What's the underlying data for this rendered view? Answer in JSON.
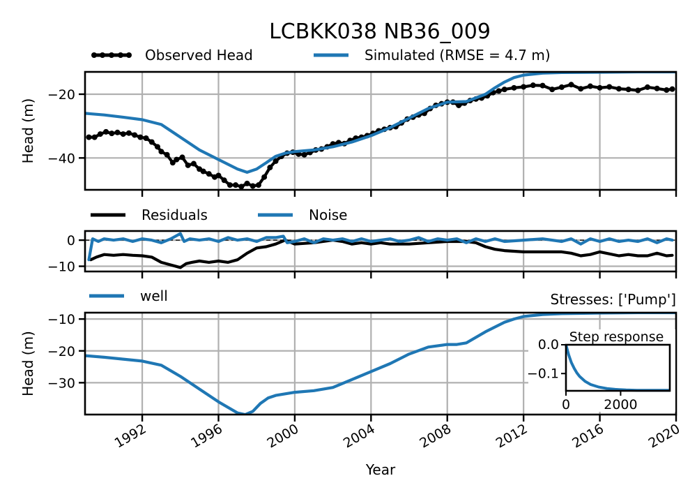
{
  "title": "LCBKK038 NB36_009",
  "colors": {
    "observed": "#000000",
    "simulated": "#1f77b4",
    "residuals": "#000000",
    "noise": "#1f77b4",
    "well": "#1f77b4",
    "grid": "#b0b0b0"
  },
  "chart_data": [
    {
      "type": "line",
      "panel": "head",
      "ylabel": "Head (m)",
      "xlim": [
        1989.0,
        2020.0
      ],
      "ylim": [
        -50.0,
        -13.0
      ],
      "yticks": [
        -20,
        -40
      ],
      "ytick_labels": [
        "−20",
        "−40"
      ],
      "grid": true,
      "legend": "above",
      "series": [
        {
          "name": "Observed Head",
          "style": "line-with-dots",
          "x": [
            1989.2,
            1989.5,
            1989.8,
            1990.1,
            1990.4,
            1990.7,
            1991.0,
            1991.3,
            1991.6,
            1991.9,
            1992.2,
            1992.5,
            1992.8,
            1993.0,
            1993.3,
            1993.6,
            1993.8,
            1994.1,
            1994.4,
            1994.7,
            1995.0,
            1995.2,
            1995.5,
            1995.8,
            1996.0,
            1996.3,
            1996.6,
            1996.9,
            1997.2,
            1997.5,
            1997.8,
            1998.1,
            1998.4,
            1998.7,
            1999.0,
            1999.3,
            1999.6,
            1999.9,
            2000.2,
            2000.5,
            2000.8,
            2001.1,
            2001.4,
            2001.7,
            2002.0,
            2002.3,
            2002.6,
            2002.9,
            2003.2,
            2003.5,
            2003.8,
            2004.1,
            2004.4,
            2004.7,
            2005.0,
            2005.3,
            2005.6,
            2005.9,
            2006.2,
            2006.5,
            2006.8,
            2007.1,
            2007.4,
            2007.7,
            2008.0,
            2008.3,
            2008.6,
            2008.9,
            2009.2,
            2009.5,
            2009.8,
            2010.1,
            2010.4,
            2010.7,
            2011.0,
            2011.5,
            2012.0,
            2012.5,
            2013.0,
            2013.5,
            2014.0,
            2014.5,
            2015.0,
            2015.5,
            2016.0,
            2016.5,
            2017.0,
            2017.5,
            2018.0,
            2018.5,
            2019.0,
            2019.5,
            2019.8
          ],
          "y": [
            -33.5,
            -33.5,
            -32.5,
            -31.8,
            -32.3,
            -32.0,
            -32.5,
            -32.2,
            -32.8,
            -33.5,
            -33.8,
            -35.0,
            -36.5,
            -38.0,
            -39.0,
            -41.5,
            -40.5,
            -39.8,
            -42.3,
            -41.8,
            -43.5,
            -44.2,
            -45.0,
            -46.0,
            -45.5,
            -47.0,
            -48.5,
            -48.5,
            -49.0,
            -48.0,
            -48.8,
            -48.5,
            -46.0,
            -43.0,
            -41.0,
            -39.5,
            -38.5,
            -38.2,
            -38.8,
            -39.0,
            -38.3,
            -37.5,
            -37.2,
            -36.5,
            -35.6,
            -35.2,
            -35.5,
            -34.5,
            -33.8,
            -33.5,
            -33.0,
            -32.3,
            -31.5,
            -31.0,
            -30.5,
            -30.2,
            -29.0,
            -27.8,
            -27.2,
            -26.5,
            -26.0,
            -24.5,
            -23.5,
            -23.0,
            -22.5,
            -22.5,
            -23.5,
            -22.8,
            -22.0,
            -21.5,
            -21.2,
            -20.5,
            -19.5,
            -19.0,
            -18.5,
            -18.0,
            -17.7,
            -17.2,
            -17.3,
            -18.5,
            -17.8,
            -17.0,
            -18.3,
            -17.5,
            -18.0,
            -17.7,
            -18.3,
            -18.5,
            -18.8,
            -17.8,
            -18.2,
            -18.7,
            -18.4
          ]
        },
        {
          "name": "Simulated (RMSE = 4.7 m)",
          "style": "line",
          "x": [
            1989.0,
            1990.0,
            1991.0,
            1992.0,
            1993.0,
            1994.0,
            1994.5,
            1995.0,
            1996.0,
            1997.0,
            1997.5,
            1998.0,
            1998.5,
            1999.0,
            1999.5,
            2000.0,
            2001.0,
            2002.0,
            2003.0,
            2004.0,
            2005.0,
            2006.0,
            2007.0,
            2008.0,
            2009.0,
            2010.0,
            2010.5,
            2011.0,
            2011.5,
            2012.0,
            2013.0,
            2014.0,
            2016.0,
            2018.0,
            2020.0
          ],
          "y": [
            -26.0,
            -26.5,
            -27.2,
            -28.0,
            -29.5,
            -33.5,
            -35.5,
            -37.5,
            -40.5,
            -43.5,
            -44.5,
            -43.5,
            -41.5,
            -39.5,
            -38.5,
            -38.0,
            -37.5,
            -36.5,
            -35.0,
            -33.0,
            -30.5,
            -27.5,
            -24.5,
            -22.5,
            -22.3,
            -20.0,
            -18.0,
            -16.2,
            -14.8,
            -14.0,
            -13.4,
            -13.2,
            -13.1,
            -13.0,
            -13.0
          ]
        }
      ]
    },
    {
      "type": "line",
      "panel": "residuals",
      "xlim": [
        1989.0,
        2020.0
      ],
      "ylim": [
        -12.0,
        3.5
      ],
      "yticks": [
        0,
        -10
      ],
      "ytick_labels": [
        "0",
        "−10"
      ],
      "zero_line": true,
      "grid": true,
      "legend": "above",
      "series": [
        {
          "name": "Residuals",
          "x": [
            1989.3,
            1989.6,
            1990.0,
            1990.5,
            1991.0,
            1991.5,
            1992.0,
            1992.5,
            1993.0,
            1993.5,
            1994.0,
            1994.3,
            1994.6,
            1995.0,
            1995.5,
            1996.0,
            1996.5,
            1997.0,
            1997.5,
            1998.0,
            1998.5,
            1999.0,
            1999.5,
            2000.0,
            2001.0,
            2002.0,
            2002.5,
            2003.0,
            2003.5,
            2004.0,
            2004.5,
            2005.0,
            2006.0,
            2007.0,
            2008.0,
            2009.0,
            2009.5,
            2010.0,
            2010.5,
            2011.0,
            2012.0,
            2013.0,
            2014.0,
            2014.5,
            2015.0,
            2015.5,
            2016.0,
            2017.0,
            2017.5,
            2018.0,
            2018.5,
            2019.0,
            2019.5,
            2019.8
          ],
          "y": [
            -7.5,
            -6.5,
            -5.5,
            -5.8,
            -5.5,
            -5.8,
            -6.0,
            -6.5,
            -8.5,
            -9.5,
            -10.5,
            -9.0,
            -8.5,
            -8.0,
            -8.5,
            -8.0,
            -8.5,
            -7.5,
            -5.0,
            -3.0,
            -2.5,
            -1.5,
            0.0,
            -1.5,
            -1.0,
            0.0,
            -0.5,
            -1.5,
            -1.0,
            -1.5,
            -1.0,
            -1.5,
            -1.5,
            -1.0,
            -0.5,
            -0.5,
            -1.0,
            -2.5,
            -3.5,
            -4.0,
            -4.5,
            -4.5,
            -4.5,
            -5.0,
            -6.0,
            -5.5,
            -4.5,
            -6.0,
            -5.5,
            -6.0,
            -6.0,
            -5.0,
            -6.0,
            -5.8
          ]
        },
        {
          "name": "Noise",
          "x": [
            1989.2,
            1989.4,
            1989.7,
            1990.0,
            1990.5,
            1991.0,
            1991.5,
            1992.0,
            1992.5,
            1993.0,
            1993.5,
            1994.0,
            1994.2,
            1994.5,
            1995.0,
            1995.5,
            1996.0,
            1996.5,
            1997.0,
            1997.5,
            1998.0,
            1998.5,
            1999.0,
            1999.4,
            1999.6,
            2000.0,
            2000.5,
            2001.0,
            2001.5,
            2002.0,
            2002.5,
            2003.0,
            2003.5,
            2004.0,
            2004.5,
            2005.0,
            2005.5,
            2006.0,
            2006.5,
            2007.0,
            2007.5,
            2008.0,
            2008.5,
            2009.0,
            2009.5,
            2010.0,
            2010.5,
            2011.0,
            2012.0,
            2013.0,
            2014.0,
            2014.5,
            2015.0,
            2015.5,
            2016.0,
            2016.5,
            2017.0,
            2017.5,
            2018.0,
            2018.5,
            2019.0,
            2019.5,
            2019.8
          ],
          "y": [
            -7.5,
            0.5,
            -0.5,
            0.5,
            0.0,
            0.5,
            -0.5,
            0.5,
            0.0,
            -1.0,
            0.5,
            2.5,
            -0.5,
            0.5,
            0.0,
            0.5,
            -0.5,
            1.0,
            0.0,
            0.5,
            -0.5,
            1.0,
            1.0,
            1.5,
            -1.0,
            -0.5,
            0.5,
            -1.0,
            0.5,
            0.0,
            0.5,
            -0.5,
            0.5,
            -0.5,
            0.0,
            0.5,
            -0.5,
            0.0,
            1.0,
            -0.5,
            0.5,
            0.0,
            0.5,
            -1.0,
            0.5,
            -0.5,
            0.5,
            -0.5,
            0.0,
            0.5,
            -0.5,
            0.5,
            -1.5,
            0.5,
            -0.5,
            0.5,
            -0.5,
            0.0,
            -0.5,
            0.5,
            -1.0,
            0.5,
            0.0
          ]
        }
      ]
    },
    {
      "type": "line",
      "panel": "contribution",
      "ylabel": "Head (m)",
      "xlabel": "Year",
      "stresses_label": "Stresses: ['Pump']",
      "xlim": [
        1989.0,
        2020.0
      ],
      "ylim": [
        -40.0,
        -8.0
      ],
      "yticks": [
        -10,
        -20,
        -30
      ],
      "ytick_labels": [
        "−10",
        "−20",
        "−30"
      ],
      "xticks": [
        1992,
        1996,
        2000,
        2004,
        2008,
        2012,
        2016,
        2020
      ],
      "xtick_labels": [
        "1992",
        "1996",
        "2000",
        "2004",
        "2008",
        "2012",
        "2016",
        "2020"
      ],
      "grid": true,
      "legend": "above",
      "series": [
        {
          "name": "well",
          "x": [
            1989.0,
            1990.0,
            1991.0,
            1992.0,
            1993.0,
            1994.0,
            1995.0,
            1996.0,
            1997.0,
            1997.4,
            1997.8,
            1998.2,
            1998.6,
            1999.0,
            2000.0,
            2001.0,
            2002.0,
            2003.0,
            2004.0,
            2005.0,
            2006.0,
            2007.0,
            2008.0,
            2008.5,
            2009.0,
            2010.0,
            2011.0,
            2011.5,
            2012.0,
            2013.0,
            2014.0,
            2016.0,
            2018.0,
            2020.0
          ],
          "y": [
            -21.5,
            -22.0,
            -22.6,
            -23.2,
            -24.5,
            -28.0,
            -32.0,
            -36.0,
            -39.5,
            -40.0,
            -39.0,
            -36.5,
            -34.8,
            -34.0,
            -33.0,
            -32.5,
            -31.5,
            -29.0,
            -26.5,
            -24.0,
            -21.0,
            -18.8,
            -18.0,
            -18.0,
            -17.5,
            -14.0,
            -11.0,
            -10.0,
            -9.2,
            -8.6,
            -8.3,
            -8.1,
            -8.0,
            -8.0
          ]
        }
      ]
    },
    {
      "type": "line",
      "panel": "step-response-inset",
      "title": "Step response",
      "xlim": [
        0,
        3800
      ],
      "ylim": [
        -0.16,
        0.0
      ],
      "xticks": [
        0,
        2000
      ],
      "xtick_labels": [
        "0",
        "2000"
      ],
      "yticks": [
        0.0,
        -0.1
      ],
      "ytick_labels": [
        "0.0",
        "−0.1"
      ],
      "series": [
        {
          "name": "",
          "x": [
            0,
            100,
            200,
            300,
            400,
            500,
            700,
            900,
            1200,
            1500,
            1800,
            2200,
            2600,
            3000,
            3400,
            3800
          ],
          "y": [
            0.0,
            -0.035,
            -0.062,
            -0.082,
            -0.098,
            -0.11,
            -0.127,
            -0.138,
            -0.147,
            -0.152,
            -0.155,
            -0.157,
            -0.158,
            -0.158,
            -0.158,
            -0.158
          ]
        }
      ]
    }
  ]
}
